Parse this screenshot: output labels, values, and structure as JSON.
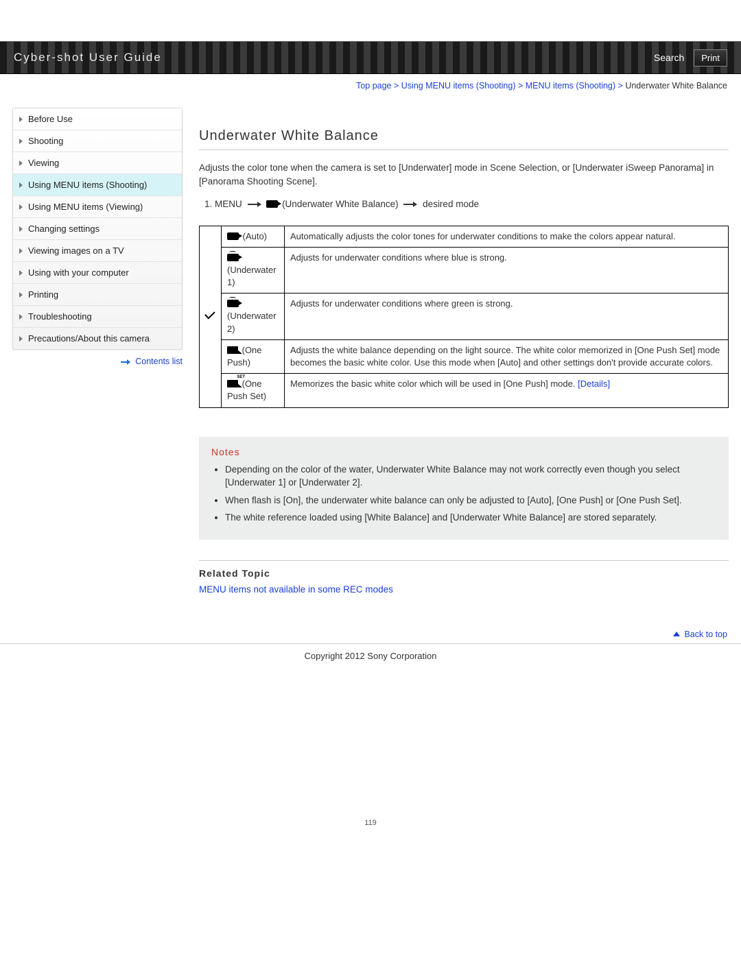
{
  "header": {
    "title": "Cyber-shot User Guide",
    "search": "Search",
    "print": "Print"
  },
  "breadcrumb": {
    "items": [
      "Top page",
      "Using MENU items (Shooting)",
      "MENU items (Shooting)"
    ],
    "current": "Underwater White Balance"
  },
  "sidebar": {
    "items": [
      "Before Use",
      "Shooting",
      "Viewing",
      "Using MENU items (Shooting)",
      "Using MENU items (Viewing)",
      "Changing settings",
      "Viewing images on a TV",
      "Using with your computer",
      "Printing",
      "Troubleshooting",
      "Precautions/About this camera"
    ],
    "active_index": 3,
    "contents_list": "Contents list"
  },
  "page": {
    "title": "Underwater White Balance",
    "intro": "Adjusts the color tone when the camera is set to [Underwater] mode in Scene Selection, or [Underwater iSweep Panorama] in [Panorama Shooting Scene].",
    "step_prefix": "1.  MENU",
    "step_mid": "(Underwater White Balance)",
    "step_suffix": "desired mode"
  },
  "table": {
    "rows": [
      {
        "label": "(Auto)",
        "desc": "Automatically adjusts the color tones for underwater conditions to make the colors appear natural.",
        "check": true,
        "icon": "cam"
      },
      {
        "label": "(Underwater 1)",
        "desc": "Adjusts for underwater conditions where blue is strong.",
        "check": false,
        "icon": "cam-wb"
      },
      {
        "label": "(Underwater 2)",
        "desc": "Adjusts for underwater conditions where green is strong.",
        "check": false,
        "icon": "cam-wb"
      },
      {
        "label": "(One Push)",
        "desc": "Adjusts the white balance depending on the light source. The white color memorized in [One Push Set] mode becomes the basic white color. Use this mode when [Auto] and other settings don't provide accurate colors.",
        "check": false,
        "icon": "onepush"
      },
      {
        "label": "(One Push Set)",
        "desc": "Memorizes the basic white color which will be used in [One Push] mode. ",
        "check": false,
        "icon": "onepush-set",
        "details": "[Details]"
      }
    ]
  },
  "notes": {
    "title": "Notes",
    "items": [
      "Depending on the color of the water, Underwater White Balance may not work correctly even though you select [Underwater 1] or [Underwater 2].",
      "When flash is [On], the underwater white balance can only be adjusted to [Auto], [One Push] or [One Push Set].",
      "The white reference loaded using [White Balance] and [Underwater White Balance] are stored separately."
    ]
  },
  "related": {
    "title": "Related Topic",
    "link": "MENU items not available in some REC modes"
  },
  "footer": {
    "backtop": "Back to top",
    "copyright": "Copyright 2012 Sony Corporation",
    "page_number": "119"
  }
}
